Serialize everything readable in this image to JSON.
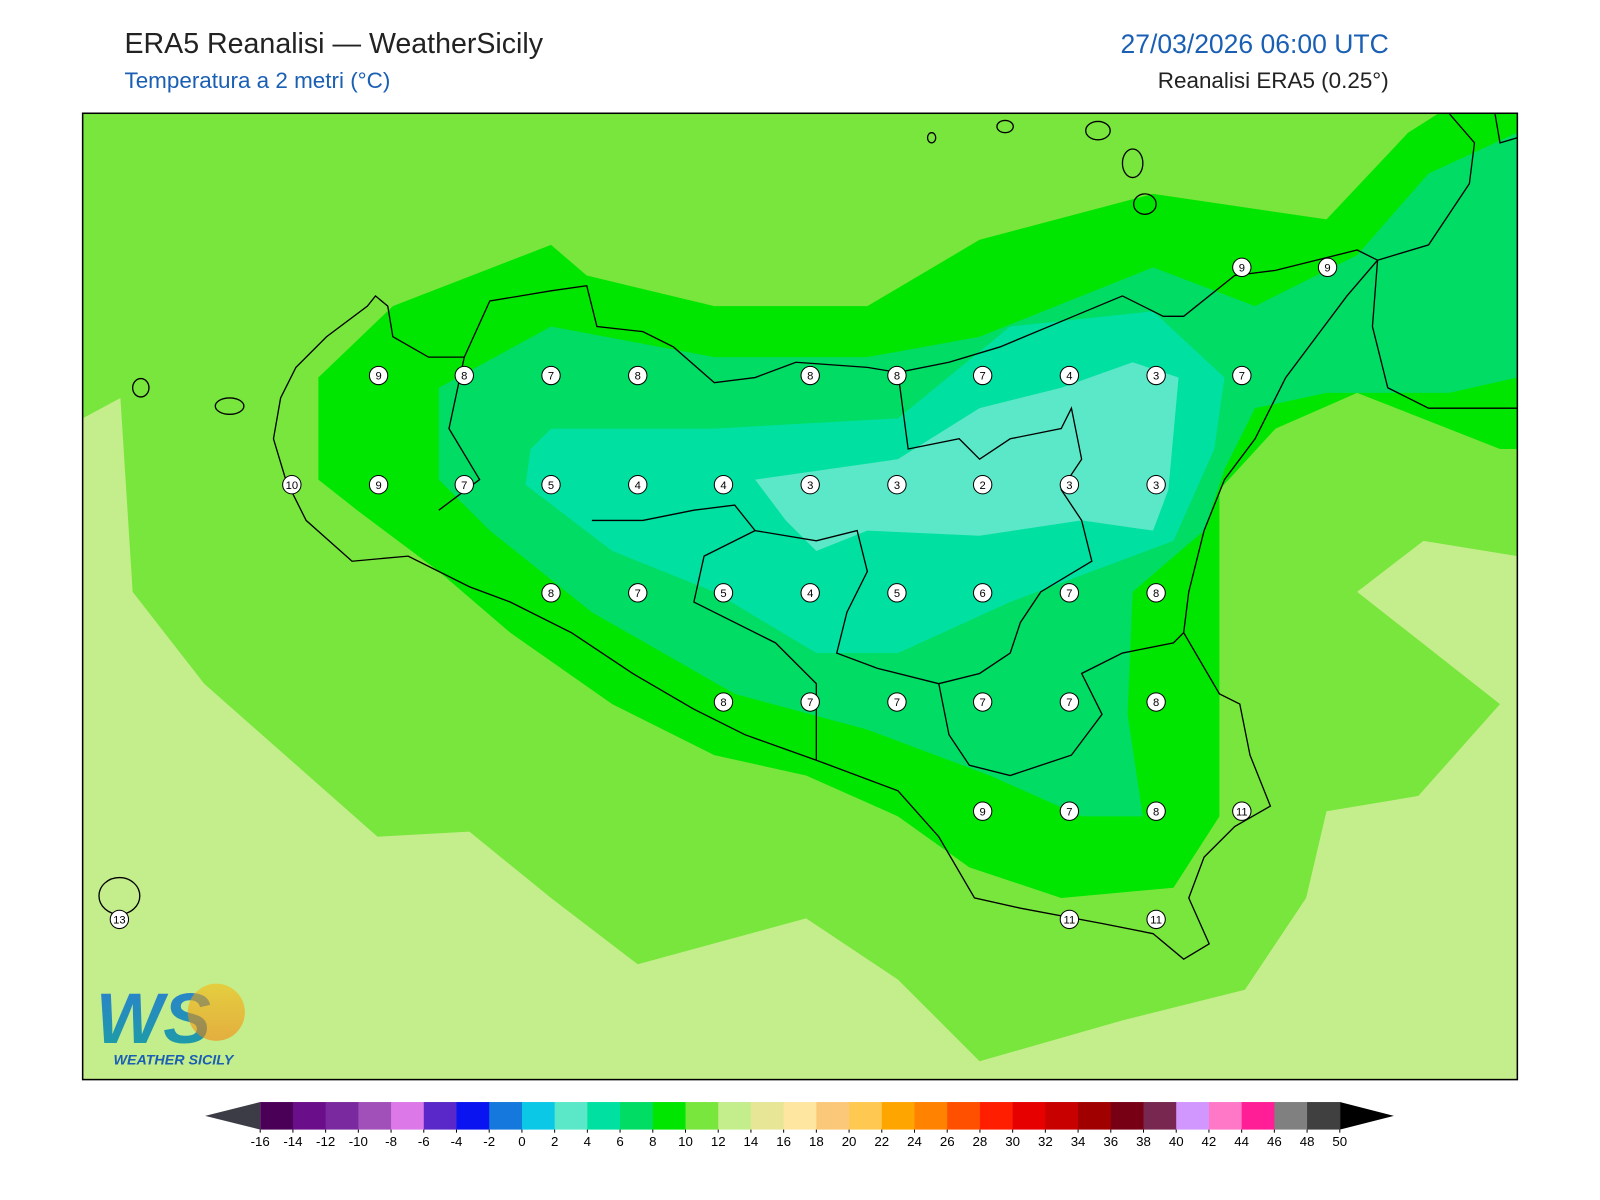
{
  "header": {
    "title": "ERA5 Reanalisi — WeatherSicily",
    "subtitle": "Temperatura a 2 metri (°C)",
    "datetime": "27/03/2026 06:00 UTC",
    "source": "Reanalisi ERA5 (0.25°)"
  },
  "stations": [
    9,
    9,
    9,
    8,
    7,
    8,
    8,
    8,
    7,
    4,
    3,
    7,
    10,
    9,
    7,
    5,
    4,
    4,
    3,
    3,
    2,
    3,
    3,
    8,
    7,
    5,
    4,
    5,
    6,
    7,
    8,
    8,
    7,
    7,
    7,
    7,
    8,
    9,
    7,
    8,
    11,
    13,
    11,
    11
  ],
  "colorbar": {
    "ticks": [
      -16,
      -14,
      -12,
      -10,
      -8,
      -6,
      -4,
      -2,
      0,
      2,
      4,
      6,
      8,
      10,
      12,
      14,
      16,
      18,
      20,
      22,
      24,
      26,
      28,
      30,
      32,
      34,
      36,
      38,
      40,
      42,
      44,
      46,
      48,
      50
    ],
    "colors": [
      "#4b0057",
      "#6a0e8a",
      "#7a2a9e",
      "#a050b8",
      "#dc78e8",
      "#5a28c8",
      "#0a14f0",
      "#1478dc",
      "#0ac8e6",
      "#5ae8c8",
      "#00e0a0",
      "#00dc64",
      "#00e600",
      "#78e63c",
      "#c4ee8c",
      "#e6e696",
      "#ffe6a0",
      "#fac878",
      "#ffc850",
      "#ffa500",
      "#ff8200",
      "#ff5000",
      "#ff1e00",
      "#e60000",
      "#c80000",
      "#a00000",
      "#780014",
      "#782850",
      "#d296ff",
      "#ff78c8",
      "#ff1e96",
      "#808080",
      "#404040"
    ],
    "under_color": "#3c3c46",
    "over_color": "#000000"
  },
  "logo": {
    "mark": "WS",
    "text": "WEATHER SICILY"
  }
}
